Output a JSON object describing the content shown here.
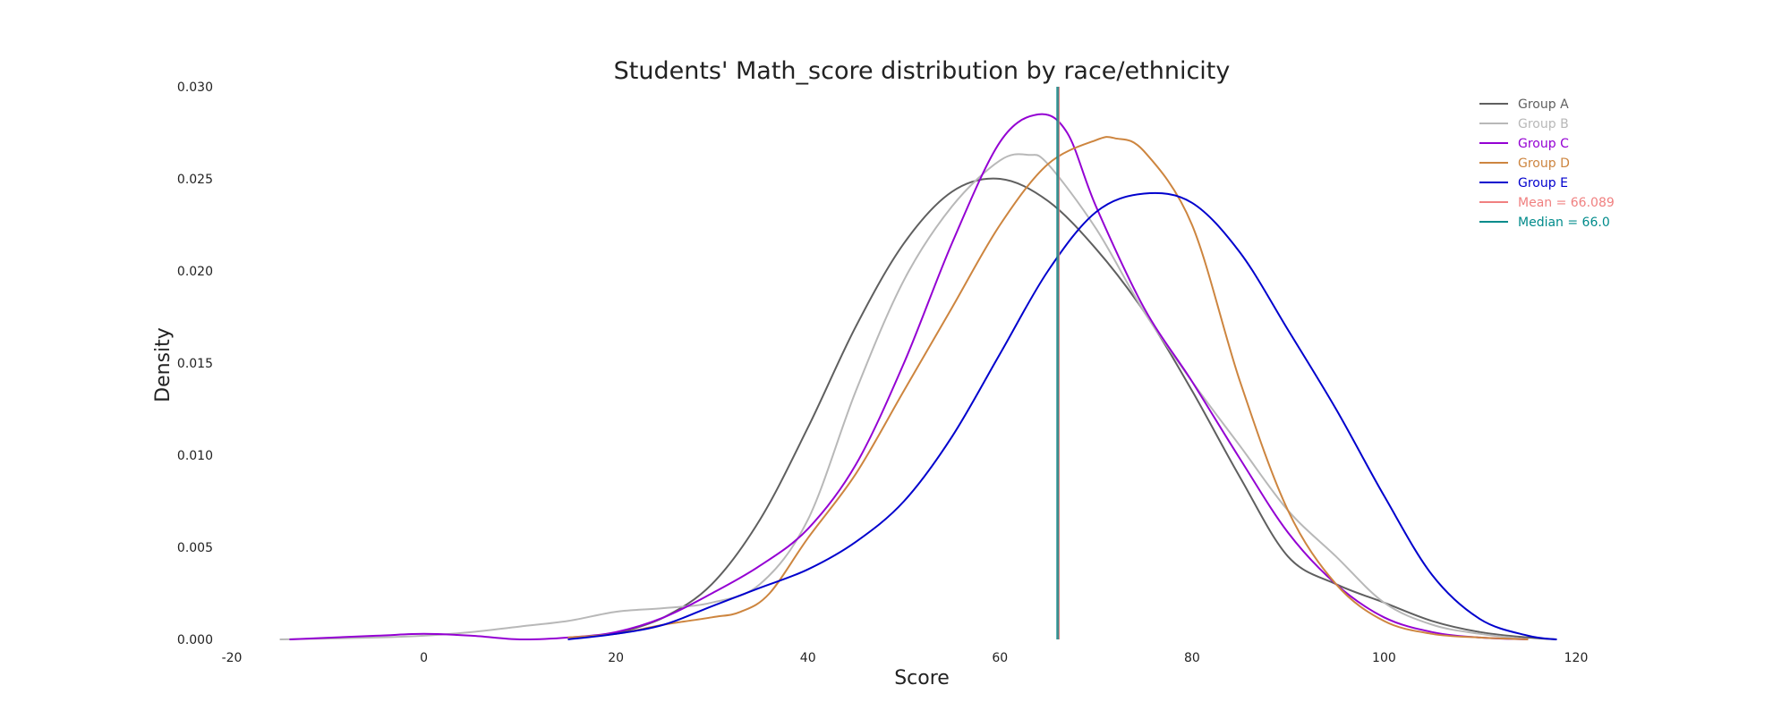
{
  "chart_data": {
    "type": "line",
    "title": "Students' Math_score distribution by race/ethnicity",
    "xlabel": "Score",
    "ylabel": "Density",
    "xlim": [
      -20,
      120
    ],
    "ylim": [
      0,
      0.03
    ],
    "x_ticks": [
      -20,
      0,
      20,
      40,
      60,
      80,
      100,
      120
    ],
    "y_ticks": [
      0.0,
      0.005,
      0.01,
      0.015,
      0.02,
      0.025,
      0.03
    ],
    "y_tick_labels": [
      "0.000",
      "0.005",
      "0.010",
      "0.015",
      "0.020",
      "0.025",
      "0.030"
    ],
    "grid": false,
    "legend_position": "top-right",
    "series": [
      {
        "name": "Group A",
        "color": "#5f5f5f",
        "x": [
          20,
          25,
          30,
          35,
          40,
          45,
          50,
          55,
          60,
          65,
          70,
          75,
          80,
          85,
          90,
          95,
          100,
          105,
          110,
          115,
          118
        ],
        "y": [
          0.0003,
          0.0012,
          0.003,
          0.0065,
          0.0115,
          0.017,
          0.0215,
          0.0243,
          0.025,
          0.0238,
          0.0212,
          0.0178,
          0.0135,
          0.0088,
          0.0045,
          0.003,
          0.002,
          0.001,
          0.0004,
          0.0001,
          0.0
        ]
      },
      {
        "name": "Group B",
        "color": "#b8b8b8",
        "x": [
          -15,
          -5,
          0,
          5,
          10,
          15,
          20,
          25,
          30,
          35,
          40,
          45,
          50,
          55,
          60,
          63,
          65,
          70,
          75,
          80,
          85,
          90,
          95,
          100,
          105,
          110,
          115
        ],
        "y": [
          0.0,
          0.0001,
          0.0002,
          0.0004,
          0.0007,
          0.001,
          0.0015,
          0.0017,
          0.002,
          0.003,
          0.0065,
          0.0135,
          0.0195,
          0.0235,
          0.026,
          0.0263,
          0.0258,
          0.0223,
          0.0178,
          0.014,
          0.0105,
          0.007,
          0.0045,
          0.002,
          0.0008,
          0.0003,
          0.0
        ]
      },
      {
        "name": "Group C",
        "color": "#9400d3",
        "x": [
          -14,
          -5,
          0,
          5,
          10,
          15,
          20,
          25,
          30,
          35,
          40,
          45,
          50,
          55,
          60,
          64,
          67,
          70,
          75,
          80,
          85,
          90,
          95,
          100,
          105,
          110,
          115
        ],
        "y": [
          0.0,
          0.0002,
          0.0003,
          0.0002,
          0.0,
          0.0001,
          0.0004,
          0.0012,
          0.0025,
          0.004,
          0.006,
          0.0095,
          0.015,
          0.0215,
          0.027,
          0.0285,
          0.0275,
          0.0235,
          0.018,
          0.014,
          0.0098,
          0.0058,
          0.003,
          0.0012,
          0.0004,
          0.0001,
          0.0
        ]
      },
      {
        "name": "Group D",
        "color": "#cd853f",
        "x": [
          15,
          20,
          25,
          30,
          33,
          36,
          40,
          45,
          50,
          55,
          60,
          65,
          70,
          72,
          75,
          80,
          85,
          90,
          95,
          100,
          105,
          110,
          115
        ],
        "y": [
          0.0001,
          0.0003,
          0.0008,
          0.0012,
          0.0015,
          0.0025,
          0.0055,
          0.009,
          0.0135,
          0.018,
          0.0225,
          0.0258,
          0.0271,
          0.0272,
          0.0265,
          0.0225,
          0.014,
          0.007,
          0.003,
          0.001,
          0.0003,
          0.0001,
          0.0
        ]
      },
      {
        "name": "Group E",
        "color": "#0000cd",
        "x": [
          15,
          20,
          25,
          30,
          35,
          40,
          45,
          50,
          55,
          60,
          65,
          70,
          75,
          80,
          85,
          90,
          95,
          100,
          105,
          110,
          115,
          118
        ],
        "y": [
          0.0,
          0.0003,
          0.0008,
          0.0018,
          0.0028,
          0.0038,
          0.0053,
          0.0075,
          0.011,
          0.0155,
          0.02,
          0.0232,
          0.0242,
          0.0237,
          0.021,
          0.0168,
          0.0125,
          0.0078,
          0.0035,
          0.0011,
          0.0002,
          0.0
        ]
      }
    ],
    "reference_lines": [
      {
        "name": "Mean = 66.089",
        "value": 66.089,
        "color": "#f08080"
      },
      {
        "name": "Median = 66.0",
        "value": 66.0,
        "color": "#008b8b"
      }
    ]
  }
}
